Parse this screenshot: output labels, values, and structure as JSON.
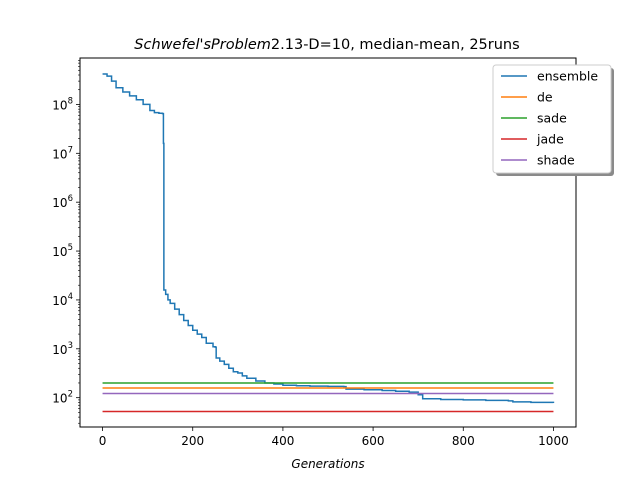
{
  "chart_data": {
    "type": "line",
    "title_italic": "Schwefel'sProblem",
    "title_rest": "2.13-D=10, median-mean, 25runs",
    "xlabel": "Generations",
    "ylabel": "",
    "yscale": "log",
    "xlim": [
      -50,
      1050
    ],
    "ylim_log10": [
      1.4,
      8.95
    ],
    "x_ticks": [
      0,
      200,
      400,
      600,
      800,
      1000
    ],
    "x_tick_labels": [
      "0",
      "200",
      "400",
      "600",
      "800",
      "1000"
    ],
    "y_ticks_exp": [
      2,
      3,
      4,
      5,
      6,
      7,
      8
    ],
    "y_tick_base": "10",
    "y_tick_exps": [
      "2",
      "3",
      "4",
      "5",
      "6",
      "7",
      "8"
    ],
    "grid": false,
    "legend_position": "top-right",
    "series": [
      {
        "name": "ensemble",
        "color": "#1f77b4",
        "points": [
          [
            0,
            420000000
          ],
          [
            10,
            380000000
          ],
          [
            20,
            300000000
          ],
          [
            30,
            220000000
          ],
          [
            45,
            180000000
          ],
          [
            60,
            150000000
          ],
          [
            75,
            125000000
          ],
          [
            90,
            100000000
          ],
          [
            105,
            75000000
          ],
          [
            115,
            68000000
          ],
          [
            125,
            66000000
          ],
          [
            133,
            65000000
          ],
          [
            135,
            16000000
          ],
          [
            136,
            16000
          ],
          [
            140,
            13000
          ],
          [
            145,
            10000
          ],
          [
            150,
            8500
          ],
          [
            160,
            6500
          ],
          [
            170,
            5000
          ],
          [
            180,
            3800
          ],
          [
            190,
            3000
          ],
          [
            200,
            2400
          ],
          [
            210,
            2000
          ],
          [
            220,
            1700
          ],
          [
            230,
            1300
          ],
          [
            245,
            1100
          ],
          [
            250,
            1080
          ],
          [
            252,
            650
          ],
          [
            260,
            560
          ],
          [
            270,
            480
          ],
          [
            280,
            400
          ],
          [
            290,
            340
          ],
          [
            300,
            320
          ],
          [
            310,
            280
          ],
          [
            320,
            250
          ],
          [
            340,
            220
          ],
          [
            360,
            200
          ],
          [
            380,
            190
          ],
          [
            400,
            180
          ],
          [
            430,
            175
          ],
          [
            460,
            172
          ],
          [
            500,
            170
          ],
          [
            535,
            168
          ],
          [
            540,
            150
          ],
          [
            580,
            145
          ],
          [
            620,
            140
          ],
          [
            650,
            135
          ],
          [
            680,
            130
          ],
          [
            700,
            115
          ],
          [
            710,
            95
          ],
          [
            750,
            92
          ],
          [
            800,
            90
          ],
          [
            850,
            88
          ],
          [
            900,
            86
          ],
          [
            910,
            82
          ],
          [
            950,
            80
          ],
          [
            1000,
            78
          ]
        ]
      },
      {
        "name": "de",
        "color": "#ff7f0e",
        "points": [
          [
            0,
            158
          ],
          [
            1000,
            158
          ]
        ]
      },
      {
        "name": "sade",
        "color": "#2ca02c",
        "points": [
          [
            0,
            200
          ],
          [
            1000,
            200
          ]
        ]
      },
      {
        "name": "jade",
        "color": "#d62728",
        "points": [
          [
            0,
            52
          ],
          [
            1000,
            52
          ]
        ]
      },
      {
        "name": "shade",
        "color": "#9467bd",
        "points": [
          [
            0,
            122
          ],
          [
            1000,
            122
          ]
        ]
      }
    ]
  }
}
